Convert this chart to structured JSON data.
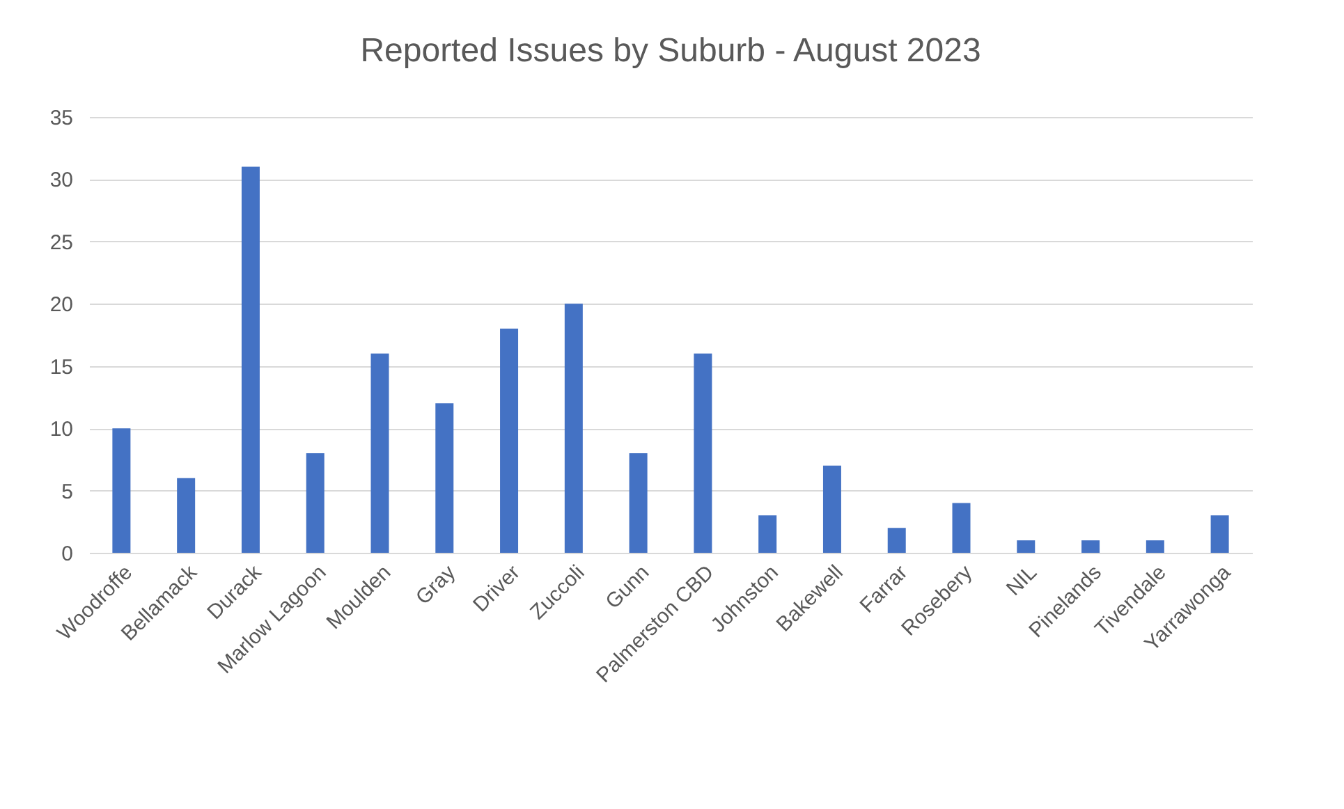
{
  "chart_data": {
    "type": "bar",
    "title": "Reported Issues by Suburb - August 2023",
    "categories": [
      "Woodroffe",
      "Bellamack",
      "Durack",
      "Marlow Lagoon",
      "Moulden",
      "Gray",
      "Driver",
      "Zuccoli",
      "Gunn",
      "Palmerston CBD",
      "Johnston",
      "Bakewell",
      "Farrar",
      "Rosebery",
      "NIL",
      "Pinelands",
      "Tivendale",
      "Yarrawonga"
    ],
    "values": [
      10,
      6,
      31,
      8,
      16,
      12,
      18,
      20,
      8,
      16,
      3,
      7,
      2,
      4,
      1,
      1,
      1,
      3
    ],
    "color": "#4472c4",
    "ylim": [
      0,
      35
    ],
    "yticks": [
      0,
      5,
      10,
      15,
      20,
      25,
      30,
      35
    ],
    "grid": "y"
  }
}
